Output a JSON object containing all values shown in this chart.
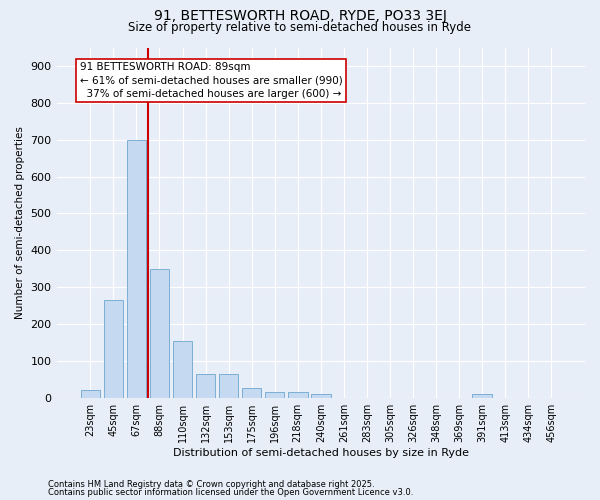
{
  "title_line1": "91, BETTESWORTH ROAD, RYDE, PO33 3EJ",
  "title_line2": "Size of property relative to semi-detached houses in Ryde",
  "xlabel": "Distribution of semi-detached houses by size in Ryde",
  "ylabel": "Number of semi-detached properties",
  "categories": [
    "23sqm",
    "45sqm",
    "67sqm",
    "88sqm",
    "110sqm",
    "132sqm",
    "153sqm",
    "175sqm",
    "196sqm",
    "218sqm",
    "240sqm",
    "261sqm",
    "283sqm",
    "305sqm",
    "326sqm",
    "348sqm",
    "369sqm",
    "391sqm",
    "413sqm",
    "434sqm",
    "456sqm"
  ],
  "values": [
    22,
    265,
    700,
    350,
    155,
    65,
    65,
    25,
    15,
    15,
    10,
    0,
    0,
    0,
    0,
    0,
    0,
    10,
    0,
    0,
    0
  ],
  "bar_color": "#c5d9f1",
  "bar_edge_color": "#7bafd4",
  "bg_color": "#e8eef8",
  "grid_color": "#ffffff",
  "vline_x": 2.5,
  "vline_color": "#cc0000",
  "annotation_text": "91 BETTESWORTH ROAD: 89sqm\n← 61% of semi-detached houses are smaller (990)\n  37% of semi-detached houses are larger (600) →",
  "annotation_box_color": "#ffffff",
  "annotation_box_edge": "#cc0000",
  "footer_line1": "Contains HM Land Registry data © Crown copyright and database right 2025.",
  "footer_line2": "Contains public sector information licensed under the Open Government Licence v3.0.",
  "ylim": [
    0,
    950
  ],
  "yticks": [
    0,
    100,
    200,
    300,
    400,
    500,
    600,
    700,
    800,
    900
  ]
}
